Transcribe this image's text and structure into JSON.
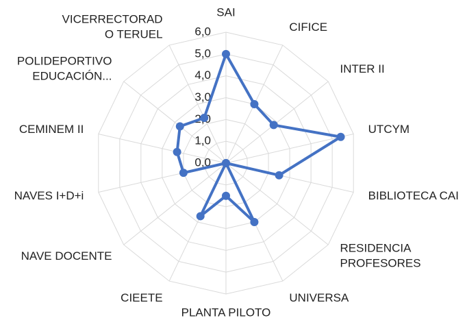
{
  "chart_data": {
    "type": "radar",
    "categories": [
      "SAI",
      "CIFICE",
      "INTER II",
      "UTCYM",
      "BIBLIOTECA CAI",
      "RESIDENCIA\nPROFESORES",
      "UNIVERSA",
      "PLANTA PILOTO",
      "CIEETE",
      "NAVE DOCENTE",
      "NAVES I+D+i",
      "CEMINEM II",
      "POLIDEPORTIVO\nEDUCACIÓN...",
      "VICERRECTORAD\nO TERUEL"
    ],
    "values": [
      5.0,
      3.0,
      2.8,
      5.4,
      2.5,
      0,
      3.0,
      1.5,
      2.7,
      0,
      2.0,
      2.3,
      2.7,
      2.3
    ],
    "color": "#4472c4",
    "ylim": [
      0,
      6
    ],
    "yticks": [
      {
        "value": 0,
        "label": "0,0"
      },
      {
        "value": 1,
        "label": "1,0"
      },
      {
        "value": 2,
        "label": "2,0"
      },
      {
        "value": 3,
        "label": "3,0"
      },
      {
        "value": 4,
        "label": "4,0"
      },
      {
        "value": 5,
        "label": "5,0"
      },
      {
        "value": 6,
        "label": "6,0"
      }
    ],
    "grid": true
  }
}
